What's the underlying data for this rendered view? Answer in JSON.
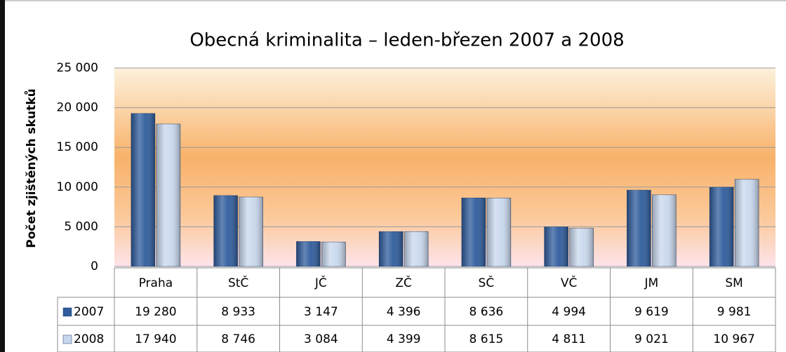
{
  "chart_data": {
    "type": "bar",
    "title": "Obecná kriminalita – leden-březen 2007 a 2008",
    "ylabel": "Počet zjištěných skutků",
    "categories": [
      "Praha",
      "StČ",
      "JČ",
      "ZČ",
      "SČ",
      "VČ",
      "JM",
      "SM"
    ],
    "series": [
      {
        "name": "2007",
        "color": "#2f5c9c",
        "values": [
          19280,
          8933,
          3147,
          4396,
          8636,
          4994,
          9619,
          9981
        ],
        "value_labels": [
          "19 280",
          "8 933",
          "3 147",
          "4 396",
          "8 636",
          "4 994",
          "9 619",
          "9 981"
        ]
      },
      {
        "name": "2008",
        "color": "#c9d8ee",
        "values": [
          17940,
          8746,
          3084,
          4399,
          8615,
          4811,
          9021,
          10967
        ],
        "value_labels": [
          "17 940",
          "8 746",
          "3 084",
          "4 399",
          "8 615",
          "4 811",
          "9 021",
          "10 967"
        ]
      }
    ],
    "ylim": [
      0,
      25000
    ],
    "yticks": [
      0,
      {
        "value": 5000,
        "label": "5 000"
      },
      {
        "value": 10000,
        "label": "10 000"
      },
      {
        "value": 15000,
        "label": "15 000"
      },
      {
        "value": 20000,
        "label": "20 000"
      },
      {
        "value": 25000,
        "label": "25 000"
      }
    ],
    "grid": true
  }
}
